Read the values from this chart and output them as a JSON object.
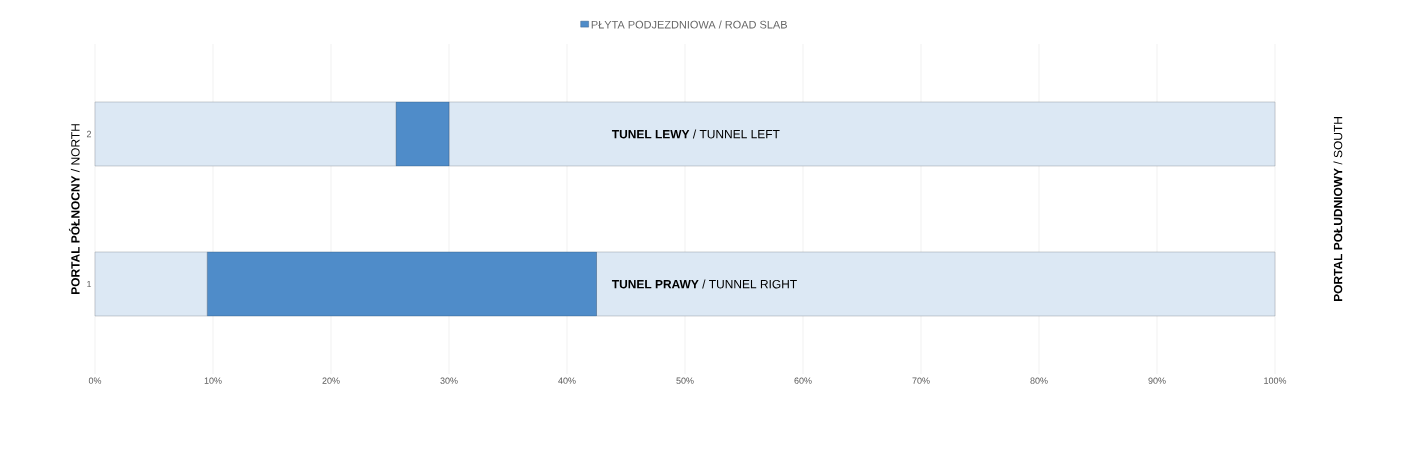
{
  "chart_data": {
    "type": "bar",
    "orientation": "horizontal",
    "stacked": true,
    "categories": [
      "2",
      "1"
    ],
    "series": [
      {
        "color": "#dce8f4",
        "values": [
          25.5,
          9.5
        ]
      },
      {
        "name": "PŁYTA PODJEZDNIOWA / ROAD SLAB",
        "color": "#4f8cc9",
        "values": [
          4.5,
          33
        ]
      },
      {
        "color": "#dce8f4",
        "values": [
          70,
          57.5
        ]
      }
    ],
    "xlim": [
      0,
      100
    ],
    "xticks": [
      {
        "value": 0,
        "label": "0%"
      },
      {
        "value": 10,
        "label": "10%"
      },
      {
        "value": 20,
        "label": "20%"
      },
      {
        "value": 30,
        "label": "30%"
      },
      {
        "value": 40,
        "label": "40%"
      },
      {
        "value": 50,
        "label": "50%"
      },
      {
        "value": 60,
        "label": "60%"
      },
      {
        "value": 70,
        "label": "70%"
      },
      {
        "value": 80,
        "label": "80%"
      },
      {
        "value": 90,
        "label": "90%"
      },
      {
        "value": 100,
        "label": "100%"
      }
    ],
    "ylabel": "**PORTAL PÓŁNOCNY** / NORTH",
    "y2label": "**PORTAL POŁUDNIOWY** / SOUTH",
    "annotations": [
      "**TUNEL LEWY** / TUNNEL  LEFT",
      "**TUNEL PRAWY** / TUNNEL  RIGHT"
    ],
    "grid": "x",
    "legend": "top"
  }
}
